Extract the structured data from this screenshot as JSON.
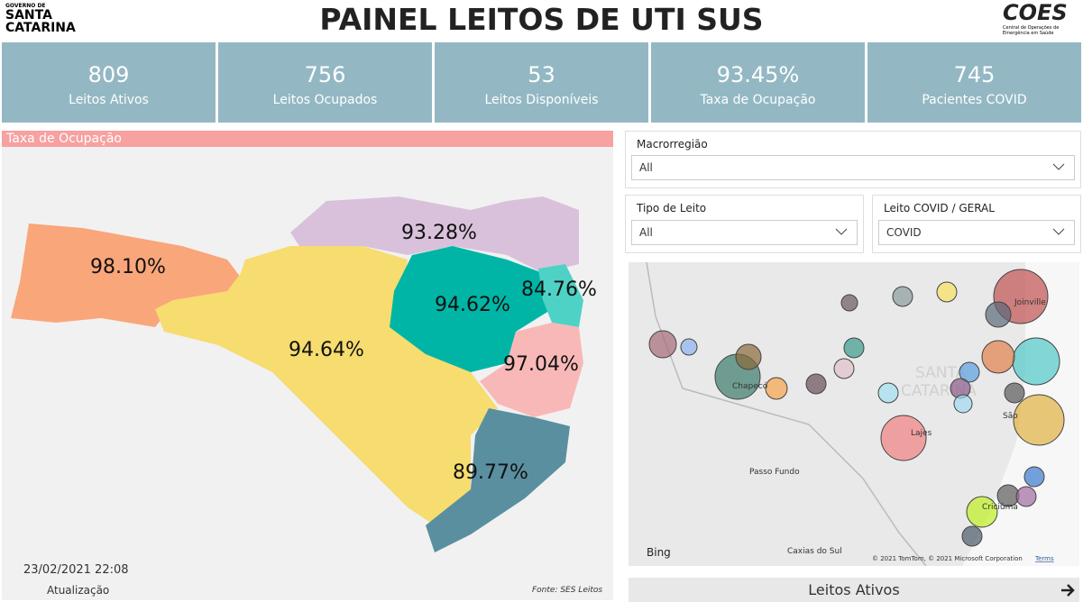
{
  "header": {
    "logo_left_top": "GOVERNO DE",
    "logo_left_line1": "SANTA",
    "logo_left_line2": "CATARINA",
    "title": "PAINEL LEITOS DE UTI SUS",
    "logo_right": "COES",
    "logo_right_sub1": "Central de Operações de",
    "logo_right_sub2": "Emergência em Saúde"
  },
  "kpis": [
    {
      "value": "809",
      "label": "Leitos Ativos"
    },
    {
      "value": "756",
      "label": "Leitos Ocupados"
    },
    {
      "value": "53",
      "label": "Leitos Disponíveis"
    },
    {
      "value": "93.45%",
      "label": "Taxa de Ocupação"
    },
    {
      "value": "745",
      "label": "Pacientes COVID"
    }
  ],
  "map_panel": {
    "title": "Taxa de Ocupação",
    "regions": [
      "98.10%",
      "93.28%",
      "94.62%",
      "84.76%",
      "94.64%",
      "97.04%",
      "89.77%"
    ],
    "update_date": "23/02/2021 22:08",
    "update_label": "Atualização",
    "source": "Fonte: SES Leitos"
  },
  "filters": [
    {
      "label": "Macrorregião",
      "value": "All"
    },
    {
      "label": "Tipo de Leito",
      "value": "All"
    },
    {
      "label": "Leito COVID / GERAL",
      "value": "COVID"
    }
  ],
  "bubble_map": {
    "places": [
      "Chapecó",
      "Passo Fundo",
      "Caxias do Sul",
      "Lajes",
      "Joinville",
      "São",
      "Criciúma",
      "SANTA",
      "CATARINA"
    ],
    "brand": "Bing",
    "attribution": "© 2021 TomTom, © 2021 Microsoft Corporation",
    "terms": "Terms"
  },
  "footer_button": {
    "label": "Leitos Ativos"
  }
}
